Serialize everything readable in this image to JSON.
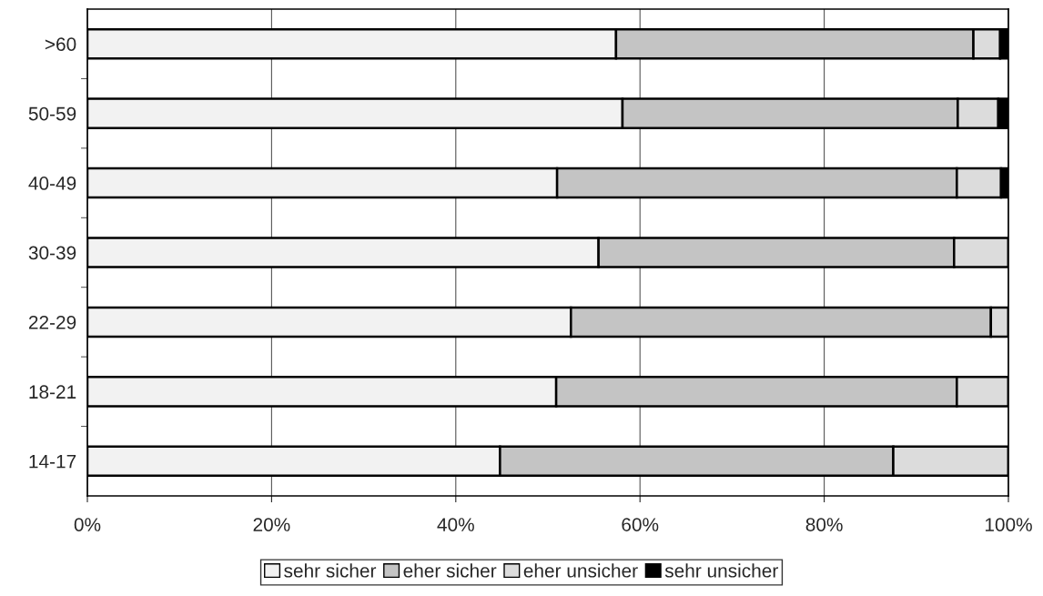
{
  "chart_data": {
    "type": "bar",
    "orientation": "horizontal",
    "stacked": true,
    "categories": [
      ">60",
      "50-59",
      "40-49",
      "30-39",
      "22-29",
      "18-21",
      "14-17"
    ],
    "series": [
      {
        "name": "sehr sicher",
        "color": "#f2f2f2",
        "values": [
          57.4,
          58.1,
          51.0,
          55.5,
          52.5,
          50.9,
          44.8
        ]
      },
      {
        "name": "eher sicher",
        "color": "#c4c4c4",
        "values": [
          38.8,
          36.4,
          43.4,
          38.6,
          45.6,
          43.5,
          42.7
        ]
      },
      {
        "name": "eher unsicher",
        "color": "#dcdcdc",
        "values": [
          2.9,
          4.4,
          4.8,
          5.9,
          1.9,
          5.6,
          12.5
        ]
      },
      {
        "name": "sehr unsicher",
        "color": "#000000",
        "values": [
          0.9,
          1.1,
          0.8,
          0,
          0,
          0,
          0
        ]
      }
    ],
    "xlim": [
      0,
      100
    ],
    "xticks": [
      {
        "value": 0,
        "label": "0%"
      },
      {
        "value": 20,
        "label": "20%"
      },
      {
        "value": 40,
        "label": "40%"
      },
      {
        "value": 60,
        "label": "60%"
      },
      {
        "value": 80,
        "label": "80%"
      },
      {
        "value": 100,
        "label": "100%"
      }
    ],
    "grid": "x",
    "legend": "bottom"
  }
}
